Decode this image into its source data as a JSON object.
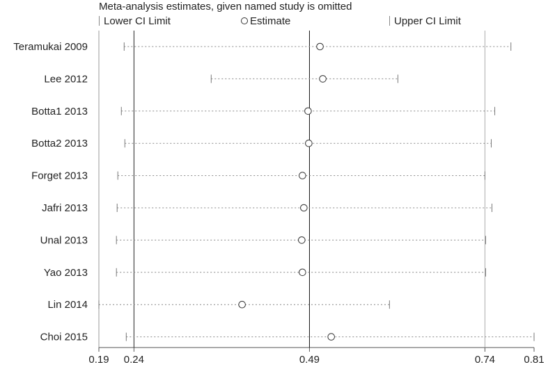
{
  "chart_data": {
    "type": "scatter",
    "title": "Meta-analysis estimates, given named study is omitted",
    "legend": {
      "lower": "Lower CI Limit",
      "estimate": "Estimate",
      "upper": "Upper CI Limit",
      "position": "top"
    },
    "xlim": [
      0.19,
      0.81
    ],
    "xticks": [
      "0.19",
      "0.24",
      "0.49",
      "0.74",
      "0.81"
    ],
    "reference_lines": [
      0.24,
      0.49,
      0.74
    ],
    "studies": [
      {
        "name": "Teramukai 2009",
        "lower": 0.226,
        "estimate": 0.505,
        "upper": 0.777
      },
      {
        "name": "Lee 2012",
        "lower": 0.35,
        "estimate": 0.509,
        "upper": 0.616
      },
      {
        "name": "Botta1 2013",
        "lower": 0.222,
        "estimate": 0.488,
        "upper": 0.754
      },
      {
        "name": "Botta2 2013",
        "lower": 0.227,
        "estimate": 0.489,
        "upper": 0.749
      },
      {
        "name": "Forget 2013",
        "lower": 0.217,
        "estimate": 0.48,
        "upper": 0.74
      },
      {
        "name": "Jafri 2013",
        "lower": 0.216,
        "estimate": 0.482,
        "upper": 0.75
      },
      {
        "name": "Unal 2013",
        "lower": 0.215,
        "estimate": 0.479,
        "upper": 0.741
      },
      {
        "name": "Yao 2013",
        "lower": 0.215,
        "estimate": 0.48,
        "upper": 0.741
      },
      {
        "name": "Lin 2014",
        "lower": 0.19,
        "estimate": 0.394,
        "upper": 0.604
      },
      {
        "name": "Choi 2015",
        "lower": 0.229,
        "estimate": 0.521,
        "upper": 0.81
      }
    ]
  }
}
